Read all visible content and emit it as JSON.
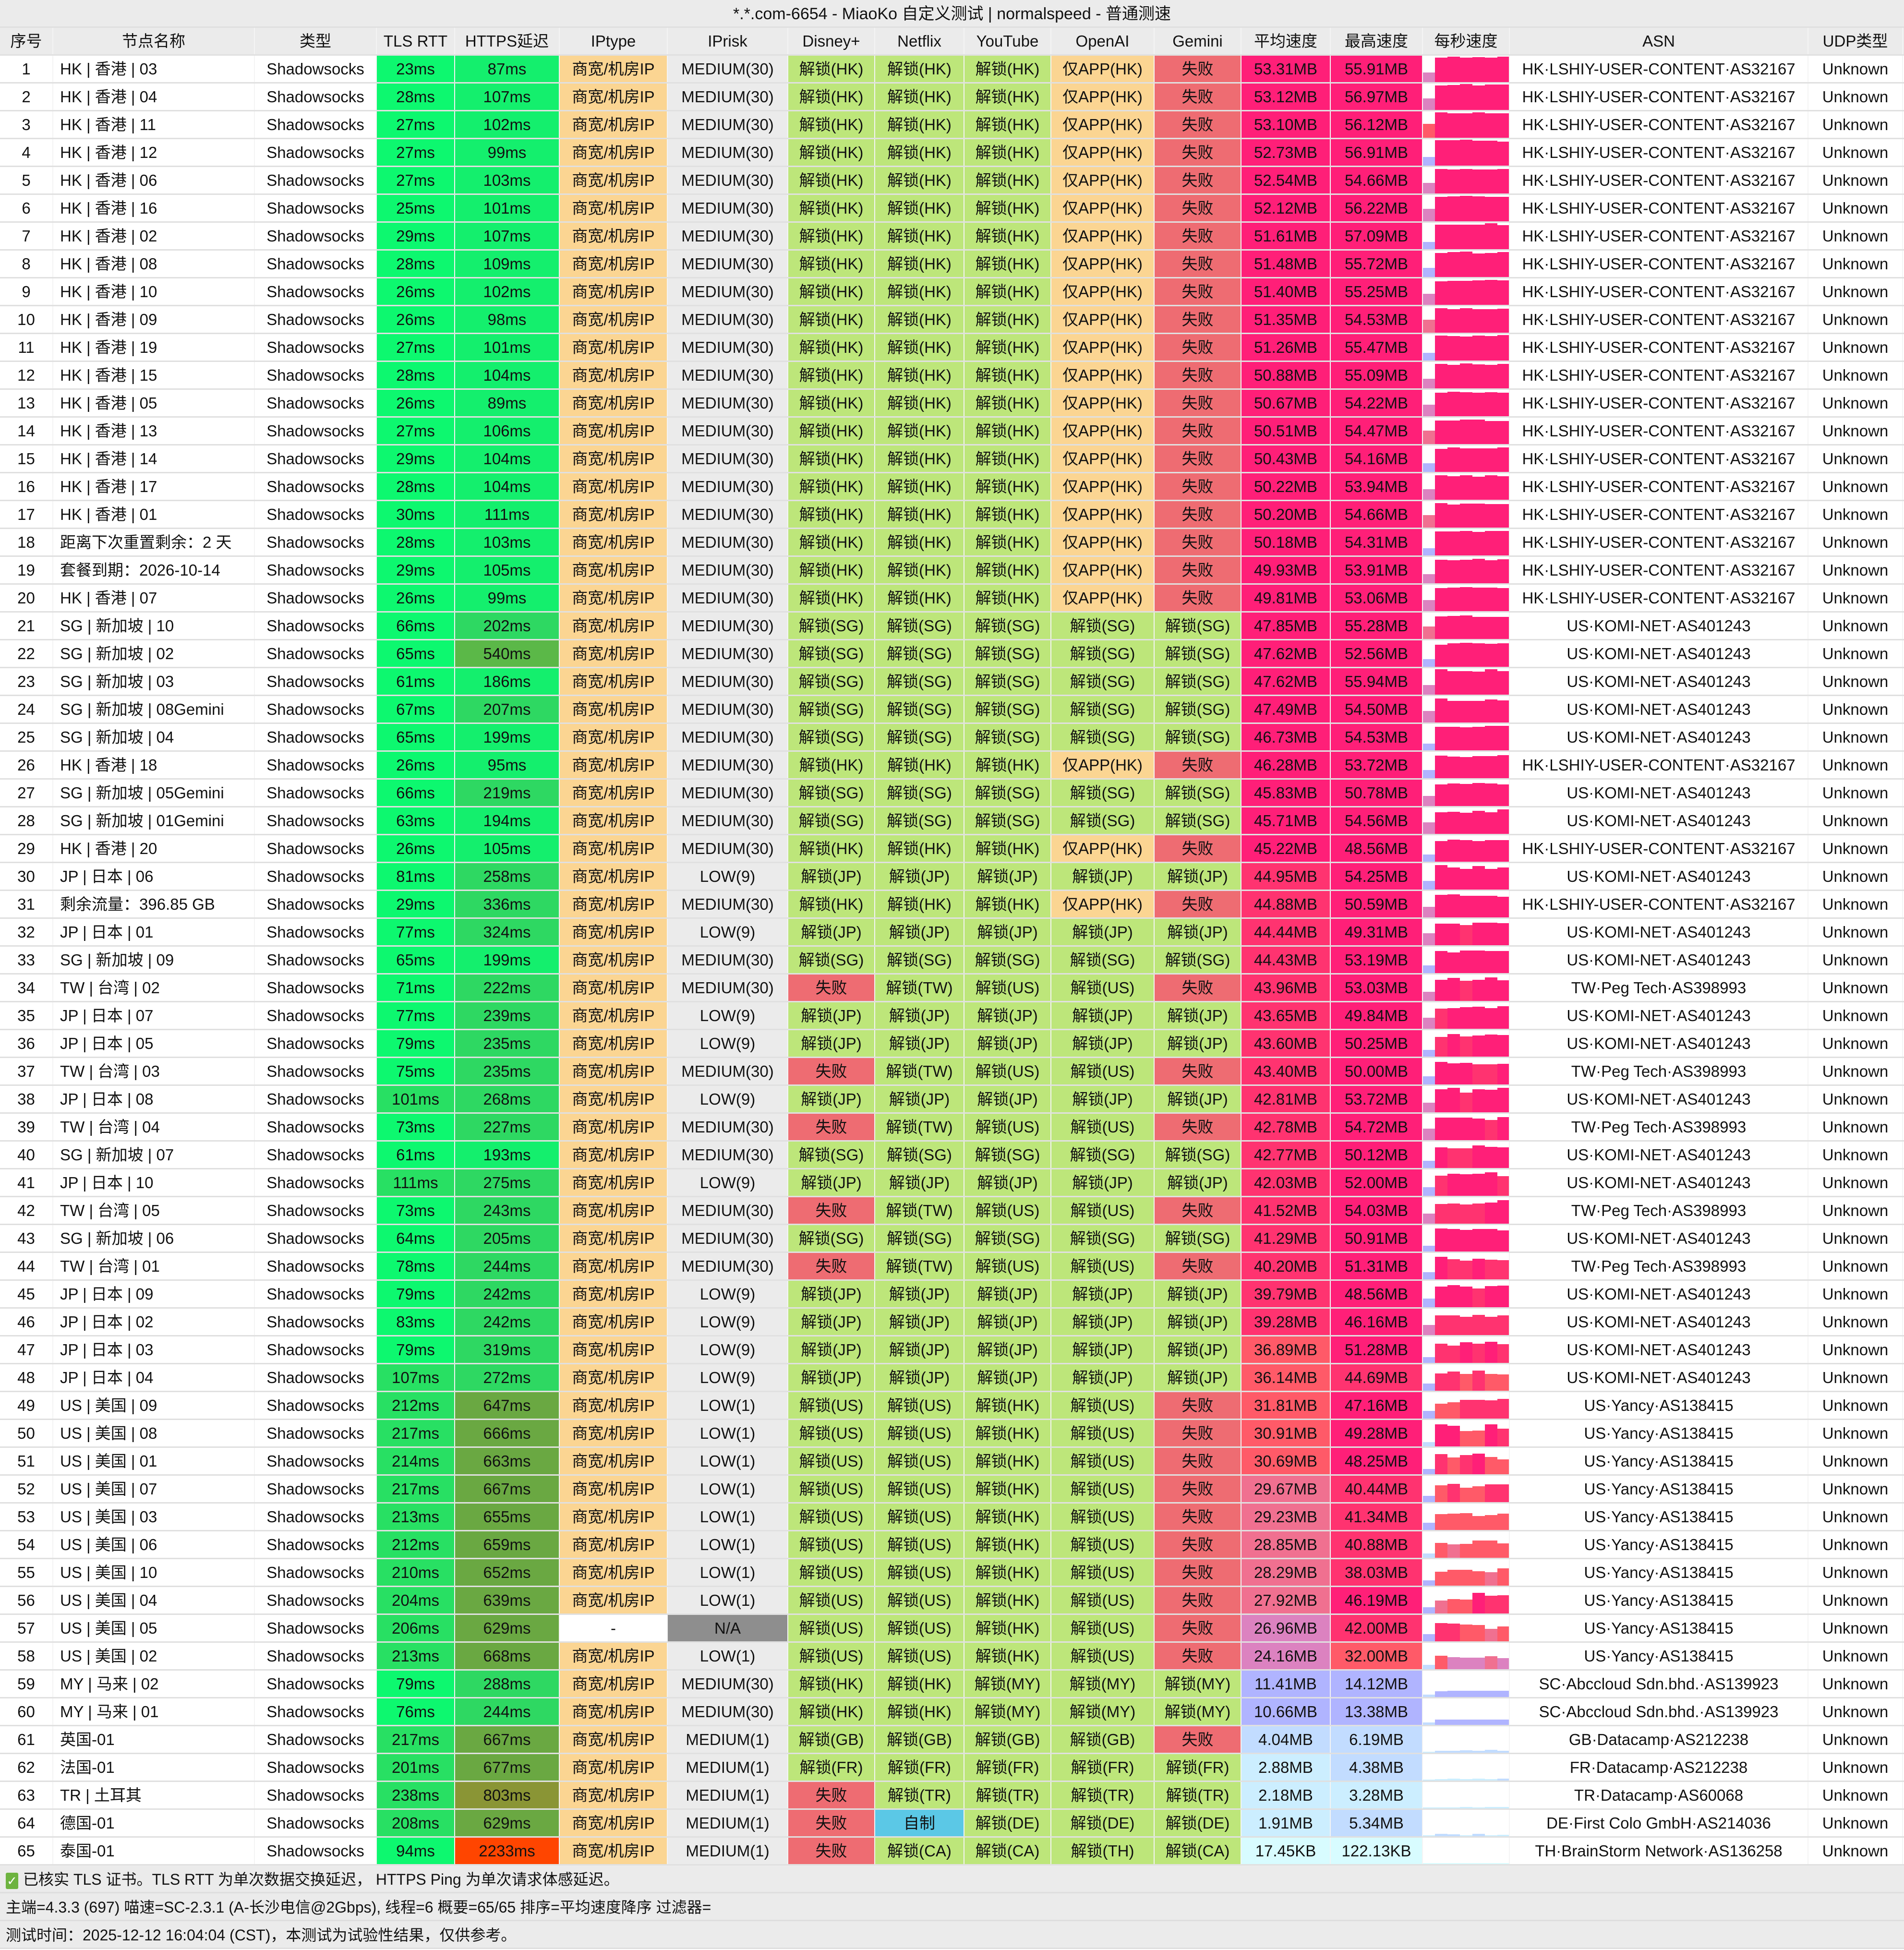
{
  "title": "*.*.com-6654 - MiaoKo 自定义测试 | normalspeed - 普通测速",
  "columns": [
    "序号",
    "节点名称",
    "类型",
    "TLS RTT",
    "HTTPS延迟",
    "IPtype",
    "IPrisk",
    "Disney+",
    "Netflix",
    "YouTube",
    "OpenAI",
    "Gemini",
    "平均速度",
    "最高速度",
    "每秒速度",
    "ASN",
    "UDP类型"
  ],
  "colors": {
    "unlock": "#bde67a",
    "app_only": "#fbd592",
    "fail": "#ee6c72",
    "self_made": "#5bc8e6",
    "iptype": "#fbd592",
    "iprisk": "#ebebeb",
    "na": "#8e8e8e",
    "speed_high": "#ff1f78",
    "speed_low": "#d8fcff"
  },
  "rows": [
    [
      "1",
      "HK | 香港 | 03",
      "Shadowsocks",
      "23ms",
      "87ms",
      "商宽/机房IP",
      "MEDIUM(30)",
      "解锁(HK)",
      "解锁(HK)",
      "解锁(HK)",
      "仅APP(HK)",
      "失败",
      "53.31MB",
      "55.91MB",
      "HK·LSHIY-USER-CONTENT·AS32167",
      "Unknown"
    ],
    [
      "2",
      "HK | 香港 | 04",
      "Shadowsocks",
      "28ms",
      "107ms",
      "商宽/机房IP",
      "MEDIUM(30)",
      "解锁(HK)",
      "解锁(HK)",
      "解锁(HK)",
      "仅APP(HK)",
      "失败",
      "53.12MB",
      "56.97MB",
      "HK·LSHIY-USER-CONTENT·AS32167",
      "Unknown"
    ],
    [
      "3",
      "HK | 香港 | 11",
      "Shadowsocks",
      "27ms",
      "102ms",
      "商宽/机房IP",
      "MEDIUM(30)",
      "解锁(HK)",
      "解锁(HK)",
      "解锁(HK)",
      "仅APP(HK)",
      "失败",
      "53.10MB",
      "56.12MB",
      "HK·LSHIY-USER-CONTENT·AS32167",
      "Unknown"
    ],
    [
      "4",
      "HK | 香港 | 12",
      "Shadowsocks",
      "27ms",
      "99ms",
      "商宽/机房IP",
      "MEDIUM(30)",
      "解锁(HK)",
      "解锁(HK)",
      "解锁(HK)",
      "仅APP(HK)",
      "失败",
      "52.73MB",
      "56.91MB",
      "HK·LSHIY-USER-CONTENT·AS32167",
      "Unknown"
    ],
    [
      "5",
      "HK | 香港 | 06",
      "Shadowsocks",
      "27ms",
      "103ms",
      "商宽/机房IP",
      "MEDIUM(30)",
      "解锁(HK)",
      "解锁(HK)",
      "解锁(HK)",
      "仅APP(HK)",
      "失败",
      "52.54MB",
      "54.66MB",
      "HK·LSHIY-USER-CONTENT·AS32167",
      "Unknown"
    ],
    [
      "6",
      "HK | 香港 | 16",
      "Shadowsocks",
      "25ms",
      "101ms",
      "商宽/机房IP",
      "MEDIUM(30)",
      "解锁(HK)",
      "解锁(HK)",
      "解锁(HK)",
      "仅APP(HK)",
      "失败",
      "52.12MB",
      "56.22MB",
      "HK·LSHIY-USER-CONTENT·AS32167",
      "Unknown"
    ],
    [
      "7",
      "HK | 香港 | 02",
      "Shadowsocks",
      "29ms",
      "107ms",
      "商宽/机房IP",
      "MEDIUM(30)",
      "解锁(HK)",
      "解锁(HK)",
      "解锁(HK)",
      "仅APP(HK)",
      "失败",
      "51.61MB",
      "57.09MB",
      "HK·LSHIY-USER-CONTENT·AS32167",
      "Unknown"
    ],
    [
      "8",
      "HK | 香港 | 08",
      "Shadowsocks",
      "28ms",
      "109ms",
      "商宽/机房IP",
      "MEDIUM(30)",
      "解锁(HK)",
      "解锁(HK)",
      "解锁(HK)",
      "仅APP(HK)",
      "失败",
      "51.48MB",
      "55.72MB",
      "HK·LSHIY-USER-CONTENT·AS32167",
      "Unknown"
    ],
    [
      "9",
      "HK | 香港 | 10",
      "Shadowsocks",
      "26ms",
      "102ms",
      "商宽/机房IP",
      "MEDIUM(30)",
      "解锁(HK)",
      "解锁(HK)",
      "解锁(HK)",
      "仅APP(HK)",
      "失败",
      "51.40MB",
      "55.25MB",
      "HK·LSHIY-USER-CONTENT·AS32167",
      "Unknown"
    ],
    [
      "10",
      "HK | 香港 | 09",
      "Shadowsocks",
      "26ms",
      "98ms",
      "商宽/机房IP",
      "MEDIUM(30)",
      "解锁(HK)",
      "解锁(HK)",
      "解锁(HK)",
      "仅APP(HK)",
      "失败",
      "51.35MB",
      "54.53MB",
      "HK·LSHIY-USER-CONTENT·AS32167",
      "Unknown"
    ],
    [
      "11",
      "HK | 香港 | 19",
      "Shadowsocks",
      "27ms",
      "101ms",
      "商宽/机房IP",
      "MEDIUM(30)",
      "解锁(HK)",
      "解锁(HK)",
      "解锁(HK)",
      "仅APP(HK)",
      "失败",
      "51.26MB",
      "55.47MB",
      "HK·LSHIY-USER-CONTENT·AS32167",
      "Unknown"
    ],
    [
      "12",
      "HK | 香港 | 15",
      "Shadowsocks",
      "28ms",
      "104ms",
      "商宽/机房IP",
      "MEDIUM(30)",
      "解锁(HK)",
      "解锁(HK)",
      "解锁(HK)",
      "仅APP(HK)",
      "失败",
      "50.88MB",
      "55.09MB",
      "HK·LSHIY-USER-CONTENT·AS32167",
      "Unknown"
    ],
    [
      "13",
      "HK | 香港 | 05",
      "Shadowsocks",
      "26ms",
      "89ms",
      "商宽/机房IP",
      "MEDIUM(30)",
      "解锁(HK)",
      "解锁(HK)",
      "解锁(HK)",
      "仅APP(HK)",
      "失败",
      "50.67MB",
      "54.22MB",
      "HK·LSHIY-USER-CONTENT·AS32167",
      "Unknown"
    ],
    [
      "14",
      "HK | 香港 | 13",
      "Shadowsocks",
      "27ms",
      "106ms",
      "商宽/机房IP",
      "MEDIUM(30)",
      "解锁(HK)",
      "解锁(HK)",
      "解锁(HK)",
      "仅APP(HK)",
      "失败",
      "50.51MB",
      "54.47MB",
      "HK·LSHIY-USER-CONTENT·AS32167",
      "Unknown"
    ],
    [
      "15",
      "HK | 香港 | 14",
      "Shadowsocks",
      "29ms",
      "104ms",
      "商宽/机房IP",
      "MEDIUM(30)",
      "解锁(HK)",
      "解锁(HK)",
      "解锁(HK)",
      "仅APP(HK)",
      "失败",
      "50.43MB",
      "54.16MB",
      "HK·LSHIY-USER-CONTENT·AS32167",
      "Unknown"
    ],
    [
      "16",
      "HK | 香港 | 17",
      "Shadowsocks",
      "28ms",
      "104ms",
      "商宽/机房IP",
      "MEDIUM(30)",
      "解锁(HK)",
      "解锁(HK)",
      "解锁(HK)",
      "仅APP(HK)",
      "失败",
      "50.22MB",
      "53.94MB",
      "HK·LSHIY-USER-CONTENT·AS32167",
      "Unknown"
    ],
    [
      "17",
      "HK | 香港 | 01",
      "Shadowsocks",
      "30ms",
      "111ms",
      "商宽/机房IP",
      "MEDIUM(30)",
      "解锁(HK)",
      "解锁(HK)",
      "解锁(HK)",
      "仅APP(HK)",
      "失败",
      "50.20MB",
      "54.66MB",
      "HK·LSHIY-USER-CONTENT·AS32167",
      "Unknown"
    ],
    [
      "18",
      "距离下次重置剩余：2 天",
      "Shadowsocks",
      "28ms",
      "103ms",
      "商宽/机房IP",
      "MEDIUM(30)",
      "解锁(HK)",
      "解锁(HK)",
      "解锁(HK)",
      "仅APP(HK)",
      "失败",
      "50.18MB",
      "54.31MB",
      "HK·LSHIY-USER-CONTENT·AS32167",
      "Unknown"
    ],
    [
      "19",
      "套餐到期：2026-10-14",
      "Shadowsocks",
      "29ms",
      "105ms",
      "商宽/机房IP",
      "MEDIUM(30)",
      "解锁(HK)",
      "解锁(HK)",
      "解锁(HK)",
      "仅APP(HK)",
      "失败",
      "49.93MB",
      "53.91MB",
      "HK·LSHIY-USER-CONTENT·AS32167",
      "Unknown"
    ],
    [
      "20",
      "HK | 香港 | 07",
      "Shadowsocks",
      "26ms",
      "99ms",
      "商宽/机房IP",
      "MEDIUM(30)",
      "解锁(HK)",
      "解锁(HK)",
      "解锁(HK)",
      "仅APP(HK)",
      "失败",
      "49.81MB",
      "53.06MB",
      "HK·LSHIY-USER-CONTENT·AS32167",
      "Unknown"
    ],
    [
      "21",
      "SG | 新加坡 | 10",
      "Shadowsocks",
      "66ms",
      "202ms",
      "商宽/机房IP",
      "MEDIUM(30)",
      "解锁(SG)",
      "解锁(SG)",
      "解锁(SG)",
      "解锁(SG)",
      "解锁(SG)",
      "47.85MB",
      "55.28MB",
      "US·KOMI-NET·AS401243",
      "Unknown"
    ],
    [
      "22",
      "SG | 新加坡 | 02",
      "Shadowsocks",
      "65ms",
      "540ms",
      "商宽/机房IP",
      "MEDIUM(30)",
      "解锁(SG)",
      "解锁(SG)",
      "解锁(SG)",
      "解锁(SG)",
      "解锁(SG)",
      "47.62MB",
      "52.56MB",
      "US·KOMI-NET·AS401243",
      "Unknown"
    ],
    [
      "23",
      "SG | 新加坡 | 03",
      "Shadowsocks",
      "61ms",
      "186ms",
      "商宽/机房IP",
      "MEDIUM(30)",
      "解锁(SG)",
      "解锁(SG)",
      "解锁(SG)",
      "解锁(SG)",
      "解锁(SG)",
      "47.62MB",
      "55.94MB",
      "US·KOMI-NET·AS401243",
      "Unknown"
    ],
    [
      "24",
      "SG | 新加坡 | 08Gemini",
      "Shadowsocks",
      "67ms",
      "207ms",
      "商宽/机房IP",
      "MEDIUM(30)",
      "解锁(SG)",
      "解锁(SG)",
      "解锁(SG)",
      "解锁(SG)",
      "解锁(SG)",
      "47.49MB",
      "54.50MB",
      "US·KOMI-NET·AS401243",
      "Unknown"
    ],
    [
      "25",
      "SG | 新加坡 | 04",
      "Shadowsocks",
      "65ms",
      "199ms",
      "商宽/机房IP",
      "MEDIUM(30)",
      "解锁(SG)",
      "解锁(SG)",
      "解锁(SG)",
      "解锁(SG)",
      "解锁(SG)",
      "46.73MB",
      "54.53MB",
      "US·KOMI-NET·AS401243",
      "Unknown"
    ],
    [
      "26",
      "HK | 香港 | 18",
      "Shadowsocks",
      "26ms",
      "95ms",
      "商宽/机房IP",
      "MEDIUM(30)",
      "解锁(HK)",
      "解锁(HK)",
      "解锁(HK)",
      "仅APP(HK)",
      "失败",
      "46.28MB",
      "53.72MB",
      "HK·LSHIY-USER-CONTENT·AS32167",
      "Unknown"
    ],
    [
      "27",
      "SG | 新加坡 | 05Gemini",
      "Shadowsocks",
      "66ms",
      "219ms",
      "商宽/机房IP",
      "MEDIUM(30)",
      "解锁(SG)",
      "解锁(SG)",
      "解锁(SG)",
      "解锁(SG)",
      "解锁(SG)",
      "45.83MB",
      "50.78MB",
      "US·KOMI-NET·AS401243",
      "Unknown"
    ],
    [
      "28",
      "SG | 新加坡 | 01Gemini",
      "Shadowsocks",
      "63ms",
      "194ms",
      "商宽/机房IP",
      "MEDIUM(30)",
      "解锁(SG)",
      "解锁(SG)",
      "解锁(SG)",
      "解锁(SG)",
      "解锁(SG)",
      "45.71MB",
      "54.56MB",
      "US·KOMI-NET·AS401243",
      "Unknown"
    ],
    [
      "29",
      "HK | 香港 | 20",
      "Shadowsocks",
      "26ms",
      "105ms",
      "商宽/机房IP",
      "MEDIUM(30)",
      "解锁(HK)",
      "解锁(HK)",
      "解锁(HK)",
      "仅APP(HK)",
      "失败",
      "45.22MB",
      "48.56MB",
      "HK·LSHIY-USER-CONTENT·AS32167",
      "Unknown"
    ],
    [
      "30",
      "JP | 日本 | 06",
      "Shadowsocks",
      "81ms",
      "258ms",
      "商宽/机房IP",
      "LOW(9)",
      "解锁(JP)",
      "解锁(JP)",
      "解锁(JP)",
      "解锁(JP)",
      "解锁(JP)",
      "44.95MB",
      "54.25MB",
      "US·KOMI-NET·AS401243",
      "Unknown"
    ],
    [
      "31",
      "剩余流量：396.85 GB",
      "Shadowsocks",
      "29ms",
      "336ms",
      "商宽/机房IP",
      "MEDIUM(30)",
      "解锁(HK)",
      "解锁(HK)",
      "解锁(HK)",
      "仅APP(HK)",
      "失败",
      "44.88MB",
      "50.59MB",
      "HK·LSHIY-USER-CONTENT·AS32167",
      "Unknown"
    ],
    [
      "32",
      "JP | 日本 | 01",
      "Shadowsocks",
      "77ms",
      "324ms",
      "商宽/机房IP",
      "LOW(9)",
      "解锁(JP)",
      "解锁(JP)",
      "解锁(JP)",
      "解锁(JP)",
      "解锁(JP)",
      "44.44MB",
      "49.31MB",
      "US·KOMI-NET·AS401243",
      "Unknown"
    ],
    [
      "33",
      "SG | 新加坡 | 09",
      "Shadowsocks",
      "65ms",
      "199ms",
      "商宽/机房IP",
      "MEDIUM(30)",
      "解锁(SG)",
      "解锁(SG)",
      "解锁(SG)",
      "解锁(SG)",
      "解锁(SG)",
      "44.43MB",
      "53.19MB",
      "US·KOMI-NET·AS401243",
      "Unknown"
    ],
    [
      "34",
      "TW | 台湾 | 02",
      "Shadowsocks",
      "71ms",
      "222ms",
      "商宽/机房IP",
      "MEDIUM(30)",
      "失败",
      "解锁(TW)",
      "解锁(US)",
      "解锁(US)",
      "失败",
      "43.96MB",
      "53.03MB",
      "TW·Peg Tech·AS398993",
      "Unknown"
    ],
    [
      "35",
      "JP | 日本 | 07",
      "Shadowsocks",
      "77ms",
      "239ms",
      "商宽/机房IP",
      "LOW(9)",
      "解锁(JP)",
      "解锁(JP)",
      "解锁(JP)",
      "解锁(JP)",
      "解锁(JP)",
      "43.65MB",
      "49.84MB",
      "US·KOMI-NET·AS401243",
      "Unknown"
    ],
    [
      "36",
      "JP | 日本 | 05",
      "Shadowsocks",
      "79ms",
      "235ms",
      "商宽/机房IP",
      "LOW(9)",
      "解锁(JP)",
      "解锁(JP)",
      "解锁(JP)",
      "解锁(JP)",
      "解锁(JP)",
      "43.60MB",
      "50.25MB",
      "US·KOMI-NET·AS401243",
      "Unknown"
    ],
    [
      "37",
      "TW | 台湾 | 03",
      "Shadowsocks",
      "75ms",
      "235ms",
      "商宽/机房IP",
      "MEDIUM(30)",
      "失败",
      "解锁(TW)",
      "解锁(US)",
      "解锁(US)",
      "失败",
      "43.40MB",
      "50.00MB",
      "TW·Peg Tech·AS398993",
      "Unknown"
    ],
    [
      "38",
      "JP | 日本 | 08",
      "Shadowsocks",
      "101ms",
      "268ms",
      "商宽/机房IP",
      "LOW(9)",
      "解锁(JP)",
      "解锁(JP)",
      "解锁(JP)",
      "解锁(JP)",
      "解锁(JP)",
      "42.81MB",
      "53.72MB",
      "US·KOMI-NET·AS401243",
      "Unknown"
    ],
    [
      "39",
      "TW | 台湾 | 04",
      "Shadowsocks",
      "73ms",
      "227ms",
      "商宽/机房IP",
      "MEDIUM(30)",
      "失败",
      "解锁(TW)",
      "解锁(US)",
      "解锁(US)",
      "失败",
      "42.78MB",
      "54.72MB",
      "TW·Peg Tech·AS398993",
      "Unknown"
    ],
    [
      "40",
      "SG | 新加坡 | 07",
      "Shadowsocks",
      "61ms",
      "193ms",
      "商宽/机房IP",
      "MEDIUM(30)",
      "解锁(SG)",
      "解锁(SG)",
      "解锁(SG)",
      "解锁(SG)",
      "解锁(SG)",
      "42.77MB",
      "50.12MB",
      "US·KOMI-NET·AS401243",
      "Unknown"
    ],
    [
      "41",
      "JP | 日本 | 10",
      "Shadowsocks",
      "111ms",
      "275ms",
      "商宽/机房IP",
      "LOW(9)",
      "解锁(JP)",
      "解锁(JP)",
      "解锁(JP)",
      "解锁(JP)",
      "解锁(JP)",
      "42.03MB",
      "52.00MB",
      "US·KOMI-NET·AS401243",
      "Unknown"
    ],
    [
      "42",
      "TW | 台湾 | 05",
      "Shadowsocks",
      "73ms",
      "243ms",
      "商宽/机房IP",
      "MEDIUM(30)",
      "失败",
      "解锁(TW)",
      "解锁(US)",
      "解锁(US)",
      "失败",
      "41.52MB",
      "54.03MB",
      "TW·Peg Tech·AS398993",
      "Unknown"
    ],
    [
      "43",
      "SG | 新加坡 | 06",
      "Shadowsocks",
      "64ms",
      "205ms",
      "商宽/机房IP",
      "MEDIUM(30)",
      "解锁(SG)",
      "解锁(SG)",
      "解锁(SG)",
      "解锁(SG)",
      "解锁(SG)",
      "41.29MB",
      "50.91MB",
      "US·KOMI-NET·AS401243",
      "Unknown"
    ],
    [
      "44",
      "TW | 台湾 | 01",
      "Shadowsocks",
      "78ms",
      "244ms",
      "商宽/机房IP",
      "MEDIUM(30)",
      "失败",
      "解锁(TW)",
      "解锁(US)",
      "解锁(US)",
      "失败",
      "40.20MB",
      "51.31MB",
      "TW·Peg Tech·AS398993",
      "Unknown"
    ],
    [
      "45",
      "JP | 日本 | 09",
      "Shadowsocks",
      "79ms",
      "242ms",
      "商宽/机房IP",
      "LOW(9)",
      "解锁(JP)",
      "解锁(JP)",
      "解锁(JP)",
      "解锁(JP)",
      "解锁(JP)",
      "39.79MB",
      "48.56MB",
      "US·KOMI-NET·AS401243",
      "Unknown"
    ],
    [
      "46",
      "JP | 日本 | 02",
      "Shadowsocks",
      "83ms",
      "242ms",
      "商宽/机房IP",
      "LOW(9)",
      "解锁(JP)",
      "解锁(JP)",
      "解锁(JP)",
      "解锁(JP)",
      "解锁(JP)",
      "39.28MB",
      "46.16MB",
      "US·KOMI-NET·AS401243",
      "Unknown"
    ],
    [
      "47",
      "JP | 日本 | 03",
      "Shadowsocks",
      "79ms",
      "319ms",
      "商宽/机房IP",
      "LOW(9)",
      "解锁(JP)",
      "解锁(JP)",
      "解锁(JP)",
      "解锁(JP)",
      "解锁(JP)",
      "36.89MB",
      "51.28MB",
      "US·KOMI-NET·AS401243",
      "Unknown"
    ],
    [
      "48",
      "JP | 日本 | 04",
      "Shadowsocks",
      "107ms",
      "272ms",
      "商宽/机房IP",
      "LOW(9)",
      "解锁(JP)",
      "解锁(JP)",
      "解锁(JP)",
      "解锁(JP)",
      "解锁(JP)",
      "36.14MB",
      "44.69MB",
      "US·KOMI-NET·AS401243",
      "Unknown"
    ],
    [
      "49",
      "US | 美国 | 09",
      "Shadowsocks",
      "212ms",
      "647ms",
      "商宽/机房IP",
      "LOW(1)",
      "解锁(US)",
      "解锁(US)",
      "解锁(HK)",
      "解锁(US)",
      "失败",
      "31.81MB",
      "47.16MB",
      "US·Yancy·AS138415",
      "Unknown"
    ],
    [
      "50",
      "US | 美国 | 08",
      "Shadowsocks",
      "217ms",
      "666ms",
      "商宽/机房IP",
      "LOW(1)",
      "解锁(US)",
      "解锁(US)",
      "解锁(HK)",
      "解锁(US)",
      "失败",
      "30.91MB",
      "49.28MB",
      "US·Yancy·AS138415",
      "Unknown"
    ],
    [
      "51",
      "US | 美国 | 01",
      "Shadowsocks",
      "214ms",
      "663ms",
      "商宽/机房IP",
      "LOW(1)",
      "解锁(US)",
      "解锁(US)",
      "解锁(HK)",
      "解锁(US)",
      "失败",
      "30.69MB",
      "48.25MB",
      "US·Yancy·AS138415",
      "Unknown"
    ],
    [
      "52",
      "US | 美国 | 07",
      "Shadowsocks",
      "217ms",
      "667ms",
      "商宽/机房IP",
      "LOW(1)",
      "解锁(US)",
      "解锁(US)",
      "解锁(HK)",
      "解锁(US)",
      "失败",
      "29.67MB",
      "40.44MB",
      "US·Yancy·AS138415",
      "Unknown"
    ],
    [
      "53",
      "US | 美国 | 03",
      "Shadowsocks",
      "213ms",
      "655ms",
      "商宽/机房IP",
      "LOW(1)",
      "解锁(US)",
      "解锁(US)",
      "解锁(HK)",
      "解锁(US)",
      "失败",
      "29.23MB",
      "41.34MB",
      "US·Yancy·AS138415",
      "Unknown"
    ],
    [
      "54",
      "US | 美国 | 06",
      "Shadowsocks",
      "212ms",
      "659ms",
      "商宽/机房IP",
      "LOW(1)",
      "解锁(US)",
      "解锁(US)",
      "解锁(HK)",
      "解锁(US)",
      "失败",
      "28.85MB",
      "40.88MB",
      "US·Yancy·AS138415",
      "Unknown"
    ],
    [
      "55",
      "US | 美国 | 10",
      "Shadowsocks",
      "210ms",
      "652ms",
      "商宽/机房IP",
      "LOW(1)",
      "解锁(US)",
      "解锁(US)",
      "解锁(HK)",
      "解锁(US)",
      "失败",
      "28.29MB",
      "38.03MB",
      "US·Yancy·AS138415",
      "Unknown"
    ],
    [
      "56",
      "US | 美国 | 04",
      "Shadowsocks",
      "204ms",
      "639ms",
      "商宽/机房IP",
      "LOW(1)",
      "解锁(US)",
      "解锁(US)",
      "解锁(HK)",
      "解锁(US)",
      "失败",
      "27.92MB",
      "46.19MB",
      "US·Yancy·AS138415",
      "Unknown"
    ],
    [
      "57",
      "US | 美国 | 05",
      "Shadowsocks",
      "206ms",
      "629ms",
      "-",
      "N/A",
      "解锁(US)",
      "解锁(US)",
      "解锁(HK)",
      "解锁(US)",
      "失败",
      "26.96MB",
      "42.00MB",
      "US·Yancy·AS138415",
      "Unknown"
    ],
    [
      "58",
      "US | 美国 | 02",
      "Shadowsocks",
      "213ms",
      "668ms",
      "商宽/机房IP",
      "LOW(1)",
      "解锁(US)",
      "解锁(US)",
      "解锁(HK)",
      "解锁(US)",
      "失败",
      "24.16MB",
      "32.00MB",
      "US·Yancy·AS138415",
      "Unknown"
    ],
    [
      "59",
      "MY | 马来 | 02",
      "Shadowsocks",
      "79ms",
      "288ms",
      "商宽/机房IP",
      "MEDIUM(30)",
      "解锁(HK)",
      "解锁(HK)",
      "解锁(MY)",
      "解锁(MY)",
      "解锁(MY)",
      "11.41MB",
      "14.12MB",
      "SC·Abccloud Sdn.bhd.·AS139923",
      "Unknown"
    ],
    [
      "60",
      "MY | 马来 | 01",
      "Shadowsocks",
      "76ms",
      "244ms",
      "商宽/机房IP",
      "MEDIUM(30)",
      "解锁(HK)",
      "解锁(HK)",
      "解锁(MY)",
      "解锁(MY)",
      "解锁(MY)",
      "10.66MB",
      "13.38MB",
      "SC·Abccloud Sdn.bhd.·AS139923",
      "Unknown"
    ],
    [
      "61",
      "英国-01",
      "Shadowsocks",
      "217ms",
      "667ms",
      "商宽/机房IP",
      "MEDIUM(1)",
      "解锁(GB)",
      "解锁(GB)",
      "解锁(GB)",
      "解锁(GB)",
      "失败",
      "4.04MB",
      "6.19MB",
      "GB·Datacamp·AS212238",
      "Unknown"
    ],
    [
      "62",
      "法国-01",
      "Shadowsocks",
      "201ms",
      "677ms",
      "商宽/机房IP",
      "MEDIUM(1)",
      "解锁(FR)",
      "解锁(FR)",
      "解锁(FR)",
      "解锁(FR)",
      "解锁(FR)",
      "2.88MB",
      "4.38MB",
      "FR·Datacamp·AS212238",
      "Unknown"
    ],
    [
      "63",
      "TR | 土耳其",
      "Shadowsocks",
      "238ms",
      "803ms",
      "商宽/机房IP",
      "MEDIUM(1)",
      "失败",
      "解锁(TR)",
      "解锁(TR)",
      "解锁(TR)",
      "解锁(TR)",
      "2.18MB",
      "3.28MB",
      "TR·Datacamp·AS60068",
      "Unknown"
    ],
    [
      "64",
      "德国-01",
      "Shadowsocks",
      "208ms",
      "629ms",
      "商宽/机房IP",
      "MEDIUM(1)",
      "失败",
      "自制",
      "解锁(DE)",
      "解锁(DE)",
      "解锁(DE)",
      "1.91MB",
      "5.34MB",
      "DE·First Colo GmbH·AS214036",
      "Unknown"
    ],
    [
      "65",
      "泰国-01",
      "Shadowsocks",
      "94ms",
      "2233ms",
      "商宽/机房IP",
      "MEDIUM(1)",
      "失败",
      "解锁(CA)",
      "解锁(CA)",
      "解锁(TH)",
      "解锁(CA)",
      "17.45KB",
      "122.13KB",
      "TH·BrainStorm Network·AS136258",
      "Unknown"
    ]
  ],
  "footer": {
    "check_icon": "check-icon",
    "note": "已核实 TLS 证书。TLS RTT 为单次数据交换延迟， HTTPS Ping 为单次请求体感延迟。",
    "info": "主端=4.3.3 (697) 喵速=SC-2.3.1 (A-长沙电信@2Gbps), 线程=6 概要=65/65 排序=平均速度降序 过滤器=",
    "time": "测试时间：2025-12-12 16:04:04 (CST)，本测试为试验性结果，仅供参考。"
  }
}
